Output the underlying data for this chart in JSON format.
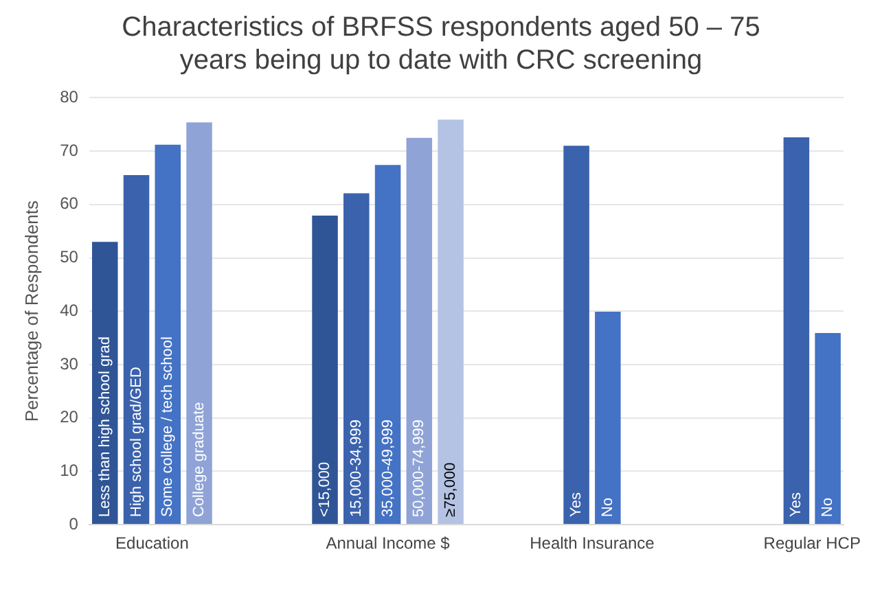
{
  "chart_data": {
    "type": "bar",
    "title": "Characteristics of BRFSS respondents aged 50 – 75 years being up to date with CRC screening",
    "ylabel": "Percentage of Respondents",
    "categories": [
      "Less than high school grad",
      "High school grad/GED",
      "Some college / tech school",
      "College graduate",
      null,
      null,
      null,
      "<15,000",
      "15,000-34,999",
      "35,000-49,999",
      "50,000-74,999",
      "≥75,000",
      null,
      null,
      null,
      "Yes",
      "No",
      null,
      null,
      null,
      null,
      null,
      "Yes",
      "No"
    ],
    "values": [
      53,
      65.5,
      71.2,
      75.4,
      null,
      null,
      null,
      57.9,
      62.1,
      67.4,
      72.5,
      75.9,
      null,
      null,
      null,
      71,
      39.9,
      null,
      null,
      null,
      null,
      null,
      72.6,
      35.9
    ],
    "colors": [
      "#2f5597",
      "#3a62ad",
      "#4472c4",
      "#8fa3d6",
      null,
      null,
      null,
      "#2f5597",
      "#3a62ad",
      "#4472c4",
      "#8fa3d6",
      "#b4c2e3",
      null,
      null,
      null,
      "#3a62ad",
      "#4472c4",
      null,
      null,
      null,
      null,
      null,
      "#3a62ad",
      "#4472c4"
    ],
    "annotations": [
      "Education",
      "Annual Income $",
      "Health Insurance",
      "Regular HCP"
    ],
    "ylim": [
      0,
      80
    ],
    "yticks": [
      0,
      10,
      20,
      30,
      40,
      50,
      60,
      70,
      80
    ],
    "grid": "y"
  }
}
